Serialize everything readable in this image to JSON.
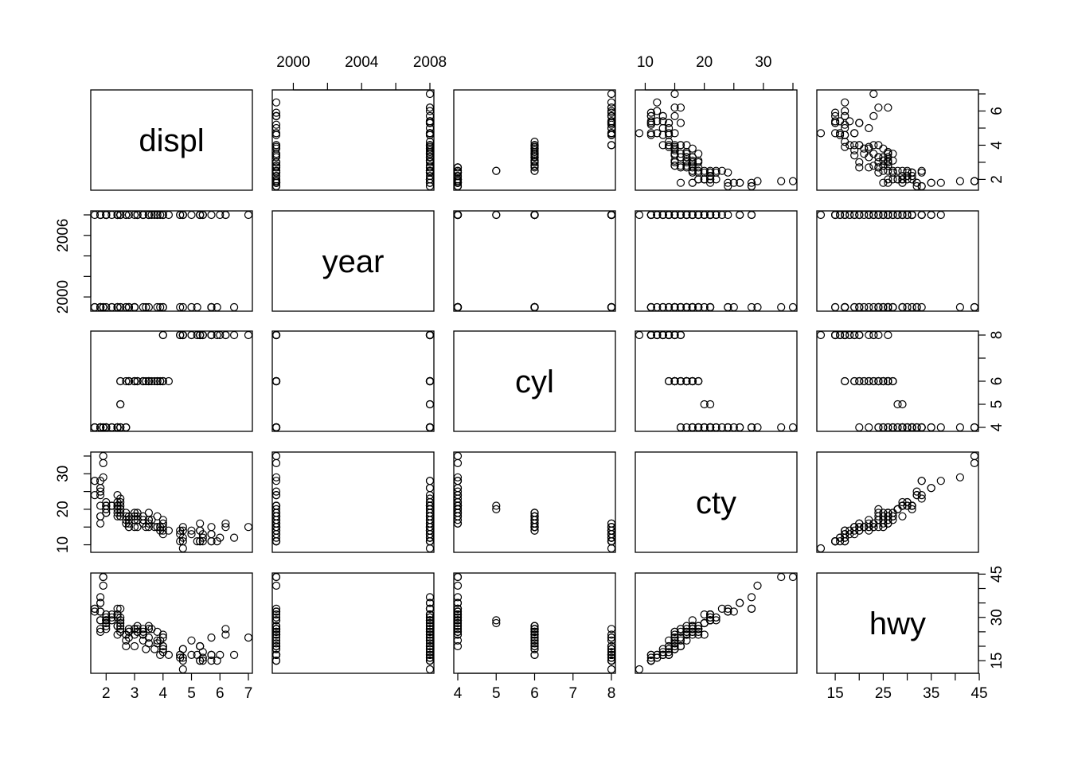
{
  "chart_data": {
    "type": "scatter",
    "variables": [
      {
        "name": "displ",
        "range": [
          1.6,
          7.0
        ],
        "ticks": [
          2,
          3,
          4,
          5,
          6,
          7
        ]
      },
      {
        "name": "year",
        "range": [
          1999,
          2008
        ],
        "ticks": [
          2000,
          2004,
          2008
        ],
        "left_ticks": [
          2000,
          2006
        ]
      },
      {
        "name": "cyl",
        "range": [
          4,
          8
        ],
        "ticks": [
          4,
          5,
          6,
          7,
          8
        ]
      },
      {
        "name": "cty",
        "range": [
          9,
          35
        ],
        "ticks": [
          10,
          20,
          30
        ]
      },
      {
        "name": "hwy",
        "range": [
          12,
          44
        ],
        "ticks": [
          15,
          25,
          35,
          45
        ],
        "right_ticks": [
          15,
          30,
          45
        ]
      }
    ],
    "tick_labels": {
      "displ_bottom": [
        "2",
        "3",
        "4",
        "5",
        "6",
        "7"
      ],
      "displ_right": [
        "2",
        "4",
        "6"
      ],
      "year_top": [
        "2000",
        "2004",
        "2008"
      ],
      "year_left": [
        "2000",
        "2006"
      ],
      "cyl_bottom": [
        "4",
        "5",
        "6",
        "7",
        "8"
      ],
      "cyl_right": [
        "4",
        "5",
        "6",
        "8"
      ],
      "cty_top": [
        "10",
        "20",
        "30"
      ],
      "cty_left": [
        "10",
        "20",
        "30"
      ],
      "hwy_bottom": [
        "15",
        "25",
        "35",
        "45"
      ],
      "hwy_right": [
        "15",
        "30",
        "45"
      ]
    },
    "points": [
      [
        1.8,
        1999,
        4,
        18,
        29
      ],
      [
        1.8,
        1999,
        4,
        21,
        29
      ],
      [
        2.0,
        2008,
        4,
        20,
        31
      ],
      [
        2.0,
        2008,
        4,
        21,
        30
      ],
      [
        2.8,
        1999,
        6,
        16,
        26
      ],
      [
        2.8,
        1999,
        6,
        18,
        26
      ],
      [
        3.1,
        2008,
        6,
        18,
        27
      ],
      [
        1.8,
        1999,
        4,
        18,
        26
      ],
      [
        1.8,
        1999,
        4,
        16,
        25
      ],
      [
        2.0,
        2008,
        4,
        20,
        28
      ],
      [
        2.0,
        2008,
        4,
        19,
        27
      ],
      [
        2.8,
        1999,
        6,
        15,
        25
      ],
      [
        2.8,
        1999,
        6,
        17,
        25
      ],
      [
        3.1,
        2008,
        6,
        17,
        25
      ],
      [
        3.1,
        2008,
        6,
        15,
        25
      ],
      [
        5.7,
        1999,
        8,
        15,
        23
      ],
      [
        5.7,
        1999,
        8,
        13,
        17
      ],
      [
        6.2,
        2008,
        8,
        15,
        24
      ],
      [
        6.2,
        2008,
        8,
        16,
        26
      ],
      [
        7.0,
        2008,
        8,
        15,
        23
      ],
      [
        5.3,
        2008,
        8,
        14,
        20
      ],
      [
        5.3,
        2008,
        8,
        11,
        15
      ],
      [
        5.7,
        1999,
        8,
        11,
        17
      ],
      [
        6.5,
        1999,
        8,
        12,
        17
      ],
      [
        5.3,
        2008,
        8,
        11,
        15
      ],
      [
        5.7,
        1999,
        8,
        11,
        15
      ],
      [
        6.0,
        2008,
        8,
        12,
        17
      ],
      [
        5.3,
        2008,
        8,
        14,
        20
      ],
      [
        4.7,
        2008,
        8,
        9,
        12
      ],
      [
        4.7,
        2008,
        8,
        11,
        15
      ],
      [
        2.4,
        1999,
        4,
        18,
        27
      ],
      [
        3.0,
        1999,
        6,
        17,
        24
      ],
      [
        3.3,
        1999,
        6,
        16,
        22
      ],
      [
        3.3,
        2008,
        6,
        17,
        24
      ],
      [
        3.8,
        1999,
        6,
        15,
        21
      ],
      [
        3.8,
        2008,
        6,
        15,
        22
      ],
      [
        4.0,
        2008,
        6,
        16,
        23
      ],
      [
        3.7,
        2008,
        6,
        15,
        19
      ],
      [
        3.9,
        1999,
        6,
        14,
        17
      ],
      [
        4.7,
        2008,
        8,
        14,
        19
      ],
      [
        5.2,
        1999,
        8,
        11,
        17
      ],
      [
        5.7,
        2008,
        8,
        13,
        17
      ],
      [
        5.9,
        1999,
        8,
        11,
        15
      ],
      [
        4.2,
        2008,
        6,
        14,
        17
      ],
      [
        4.6,
        1999,
        8,
        14,
        17
      ],
      [
        5.0,
        1999,
        8,
        13,
        17
      ],
      [
        5.4,
        2008,
        8,
        12,
        16
      ],
      [
        3.0,
        1999,
        6,
        15,
        20
      ],
      [
        3.5,
        2008,
        6,
        16,
        23
      ],
      [
        3.5,
        2008,
        6,
        15,
        21
      ],
      [
        4.6,
        2008,
        8,
        13,
        17
      ],
      [
        5.4,
        2008,
        8,
        13,
        18
      ],
      [
        4.0,
        1999,
        6,
        17,
        24
      ],
      [
        4.7,
        1999,
        8,
        15,
        19
      ],
      [
        2.4,
        1999,
        4,
        19,
        27
      ],
      [
        2.5,
        1999,
        6,
        18,
        26
      ],
      [
        3.5,
        1999,
        6,
        17,
        26
      ],
      [
        3.5,
        2008,
        6,
        17,
        27
      ],
      [
        2.0,
        2008,
        4,
        21,
        29
      ],
      [
        2.7,
        2008,
        6,
        18,
        24
      ],
      [
        2.7,
        1999,
        4,
        16,
        20
      ],
      [
        3.4,
        1999,
        6,
        15,
        19
      ],
      [
        4.0,
        2008,
        6,
        16,
        20
      ],
      [
        2.4,
        1999,
        4,
        20,
        24
      ],
      [
        2.4,
        2008,
        4,
        22,
        30
      ],
      [
        3.3,
        2008,
        6,
        18,
        26
      ],
      [
        1.8,
        1999,
        4,
        24,
        32
      ],
      [
        1.8,
        1999,
        4,
        25,
        32
      ],
      [
        1.8,
        2008,
        4,
        26,
        35
      ],
      [
        1.6,
        1999,
        4,
        28,
        33
      ],
      [
        1.6,
        1999,
        4,
        24,
        32
      ],
      [
        2.0,
        2008,
        4,
        21,
        29
      ],
      [
        2.4,
        1999,
        4,
        21,
        31
      ],
      [
        2.2,
        1999,
        4,
        21,
        29
      ],
      [
        2.5,
        2008,
        4,
        23,
        33
      ],
      [
        1.8,
        2008,
        4,
        28,
        37
      ],
      [
        1.8,
        2008,
        4,
        26,
        35
      ],
      [
        1.9,
        1999,
        4,
        33,
        44
      ],
      [
        1.9,
        1999,
        4,
        35,
        44
      ],
      [
        1.9,
        1999,
        4,
        29,
        41
      ],
      [
        2.5,
        2008,
        4,
        22,
        30
      ],
      [
        2.0,
        2008,
        4,
        20,
        28
      ],
      [
        2.4,
        2008,
        4,
        21,
        31
      ],
      [
        2.5,
        2008,
        4,
        19,
        25
      ],
      [
        2.5,
        2008,
        5,
        21,
        29
      ],
      [
        2.5,
        2008,
        5,
        20,
        28
      ],
      [
        2.0,
        1999,
        4,
        19,
        26
      ],
      [
        2.2,
        1999,
        4,
        21,
        30
      ],
      [
        2.4,
        2008,
        4,
        21,
        31
      ],
      [
        3.0,
        2008,
        6,
        18,
        26
      ],
      [
        3.3,
        2008,
        6,
        17,
        24
      ],
      [
        3.5,
        2008,
        6,
        19,
        26
      ],
      [
        3.0,
        1999,
        6,
        18,
        26
      ],
      [
        2.5,
        1999,
        6,
        18,
        27
      ],
      [
        3.6,
        2008,
        6,
        17,
        26
      ],
      [
        3.0,
        1999,
        6,
        19,
        26
      ],
      [
        4.0,
        2008,
        8,
        14,
        18
      ],
      [
        2.7,
        2008,
        4,
        17,
        22
      ],
      [
        5.3,
        2008,
        8,
        16,
        20
      ],
      [
        3.3,
        2008,
        6,
        18,
        25
      ],
      [
        4.6,
        2008,
        8,
        11,
        16
      ],
      [
        2.4,
        2008,
        4,
        21,
        31
      ],
      [
        3.1,
        2008,
        6,
        19,
        26
      ],
      [
        2.0,
        2008,
        4,
        21,
        29
      ],
      [
        3.8,
        2008,
        6,
        18,
        25
      ],
      [
        1.6,
        2008,
        4,
        28,
        33
      ],
      [
        2.2,
        2008,
        4,
        21,
        31
      ],
      [
        2.4,
        2008,
        4,
        24,
        33
      ],
      [
        2.7,
        1999,
        4,
        19,
        24
      ],
      [
        4.7,
        2008,
        8,
        12,
        16
      ],
      [
        4.0,
        1999,
        6,
        15,
        20
      ],
      [
        5.0,
        2008,
        8,
        14,
        22
      ],
      [
        4.0,
        2008,
        8,
        13,
        19
      ],
      [
        2.0,
        2008,
        4,
        22,
        29
      ],
      [
        2.8,
        2008,
        6,
        15,
        23
      ],
      [
        3.9,
        2008,
        6,
        15,
        22
      ],
      [
        5.4,
        2008,
        8,
        11,
        15
      ]
    ]
  }
}
